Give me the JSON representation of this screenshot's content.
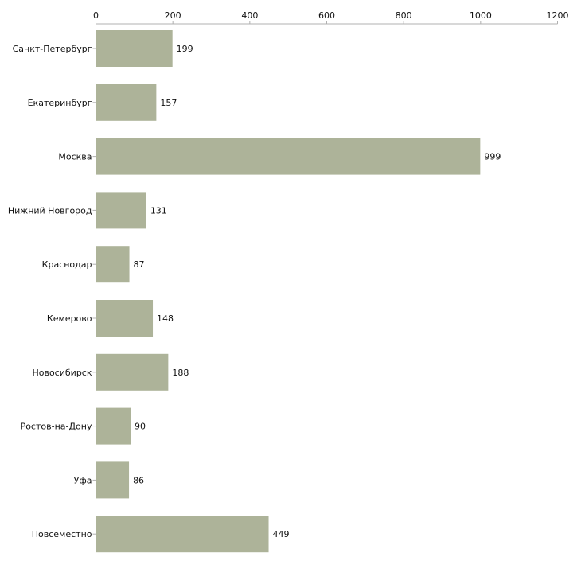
{
  "chart_data": {
    "type": "bar",
    "orientation": "horizontal",
    "title": "",
    "xlabel": "",
    "ylabel": "",
    "xlim": [
      0,
      1200
    ],
    "x_ticks": [
      0,
      200,
      400,
      600,
      800,
      1000,
      1200
    ],
    "x_axis_position": "top",
    "grid": false,
    "legend": "none",
    "bar_color": "#adb399",
    "axis_color": "#b0b0b0",
    "categories": [
      "Санкт-Петербург",
      "Екатеринбург",
      "Москва",
      "Нижний Новгород",
      "Краснодар",
      "Кемерово",
      "Новосибирск",
      "Ростов-на-Дону",
      "Уфа",
      "Повсеместно"
    ],
    "values": [
      199,
      157,
      999,
      131,
      87,
      148,
      188,
      90,
      86,
      449
    ]
  }
}
